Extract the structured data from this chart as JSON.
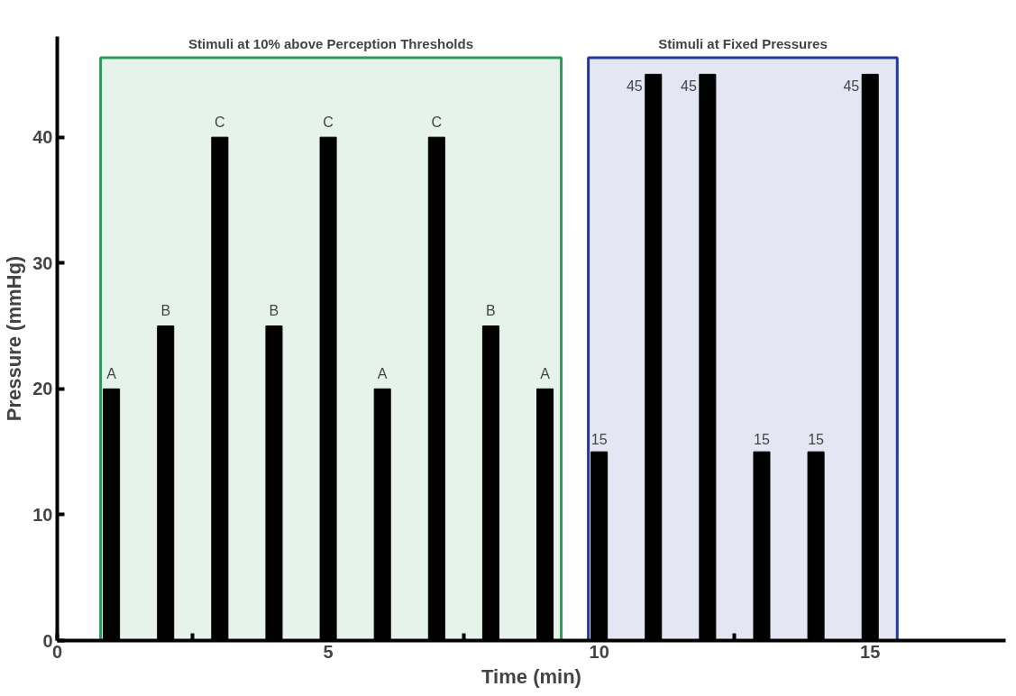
{
  "chart_data": {
    "type": "bar",
    "xlabel": "Time (min)",
    "ylabel": "Pressure (mmHg)",
    "x": [
      1,
      2,
      3,
      4,
      5,
      6,
      7,
      8,
      9,
      10,
      11,
      12,
      13,
      14,
      15
    ],
    "values": [
      20,
      25,
      40,
      25,
      40,
      20,
      40,
      25,
      20,
      15,
      45,
      45,
      15,
      15,
      45
    ],
    "value_labels": [
      "A",
      "B",
      "C",
      "B",
      "C",
      "A",
      "C",
      "B",
      "A",
      "15",
      "45",
      "45",
      "15",
      "15",
      "45"
    ],
    "color": "#000000",
    "xlim": [
      0,
      17.5
    ],
    "xticks": [
      0,
      {
        "value": 2.5,
        "label": null
      },
      5,
      {
        "value": 7.5,
        "label": null
      },
      10,
      {
        "value": 12.5,
        "label": null
      },
      15
    ],
    "ylim": [
      0,
      48
    ],
    "yticks": [
      0,
      10,
      20,
      30,
      40
    ],
    "bands": [
      {
        "axis": "x",
        "from": 0.8,
        "to": 9.3,
        "label": "Stimuli at 10% above Perception Thresholds",
        "color": "#2e9b5a"
      },
      {
        "axis": "x",
        "from": 9.8,
        "to": 15.5,
        "label": "Stimuli at Fixed Pressures",
        "color": "#1f3a9e"
      }
    ],
    "grid": false
  }
}
